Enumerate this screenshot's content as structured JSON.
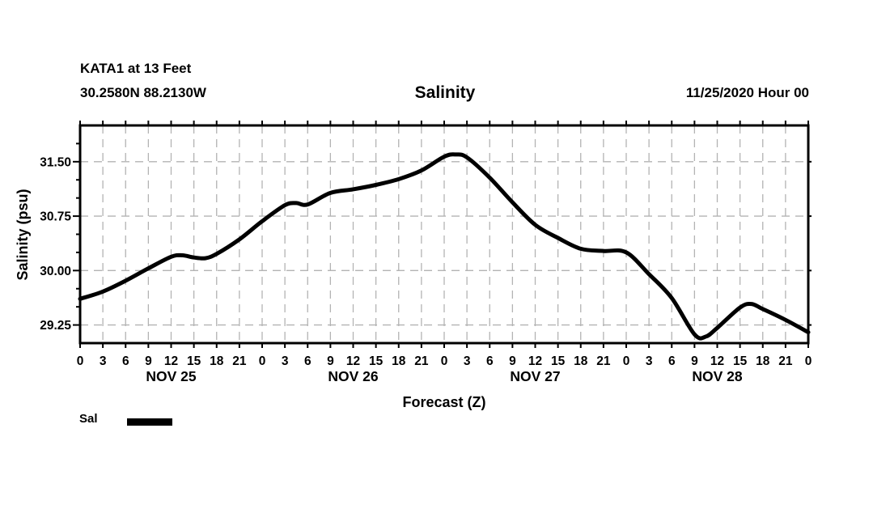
{
  "header": {
    "station": "KATA1 at 13 Feet",
    "coordinates": "30.2580N 88.2130W",
    "title": "Salinity",
    "datetime": "11/25/2020 Hour 00"
  },
  "legend": {
    "label": "Sal"
  },
  "colors": {
    "line": "#000000",
    "grid": "#b3b3b3",
    "text": "#000000",
    "background": "#ffffff"
  },
  "chart_data": {
    "type": "line",
    "title": "Salinity",
    "xlabel": "Forecast (Z)",
    "ylabel": "Salinity (psu)",
    "ylim": [
      29.0,
      32.0
    ],
    "xlim_hours": [
      0,
      96
    ],
    "grid": "dashed",
    "legend_position": "bottom-left",
    "x_tick_step_hours": 3,
    "x_tick_labels": [
      "0",
      "3",
      "6",
      "9",
      "12",
      "15",
      "18",
      "21",
      "0",
      "3",
      "6",
      "9",
      "12",
      "15",
      "18",
      "21",
      "0",
      "3",
      "6",
      "9",
      "12",
      "15",
      "18",
      "21",
      "0",
      "3",
      "6",
      "9",
      "12",
      "15",
      "18",
      "21",
      "0"
    ],
    "day_labels": [
      {
        "label": "NOV 25",
        "center_hour": 12
      },
      {
        "label": "NOV 26",
        "center_hour": 36
      },
      {
        "label": "NOV 27",
        "center_hour": 60
      },
      {
        "label": "NOV 28",
        "center_hour": 84
      }
    ],
    "y_major_ticks": [
      29.25,
      30.0,
      30.75,
      31.5
    ],
    "y_major_tick_labels": [
      "29.25",
      "30.00",
      "30.75",
      "31.50"
    ],
    "y_minor_step": 0.25,
    "series": [
      {
        "name": "Sal",
        "color": "#000000",
        "points_hour_value": [
          [
            0,
            29.61
          ],
          [
            3,
            29.71
          ],
          [
            6,
            29.86
          ],
          [
            9,
            30.03
          ],
          [
            12,
            30.19
          ],
          [
            13.5,
            30.21
          ],
          [
            15,
            30.18
          ],
          [
            16.5,
            30.17
          ],
          [
            18,
            30.23
          ],
          [
            21,
            30.43
          ],
          [
            24,
            30.68
          ],
          [
            27,
            30.9
          ],
          [
            28.5,
            30.93
          ],
          [
            30,
            30.91
          ],
          [
            33,
            31.07
          ],
          [
            36,
            31.12
          ],
          [
            39,
            31.18
          ],
          [
            42,
            31.26
          ],
          [
            45,
            31.38
          ],
          [
            48,
            31.57
          ],
          [
            49.5,
            31.6
          ],
          [
            51,
            31.56
          ],
          [
            54,
            31.28
          ],
          [
            57,
            30.94
          ],
          [
            60,
            30.63
          ],
          [
            63,
            30.45
          ],
          [
            66,
            30.3
          ],
          [
            69,
            30.27
          ],
          [
            72,
            30.25
          ],
          [
            75,
            29.95
          ],
          [
            78,
            29.62
          ],
          [
            81,
            29.12
          ],
          [
            82.5,
            29.09
          ],
          [
            84,
            29.21
          ],
          [
            87,
            29.49
          ],
          [
            88.5,
            29.54
          ],
          [
            90,
            29.47
          ],
          [
            93,
            29.32
          ],
          [
            96,
            29.15
          ]
        ]
      }
    ]
  }
}
